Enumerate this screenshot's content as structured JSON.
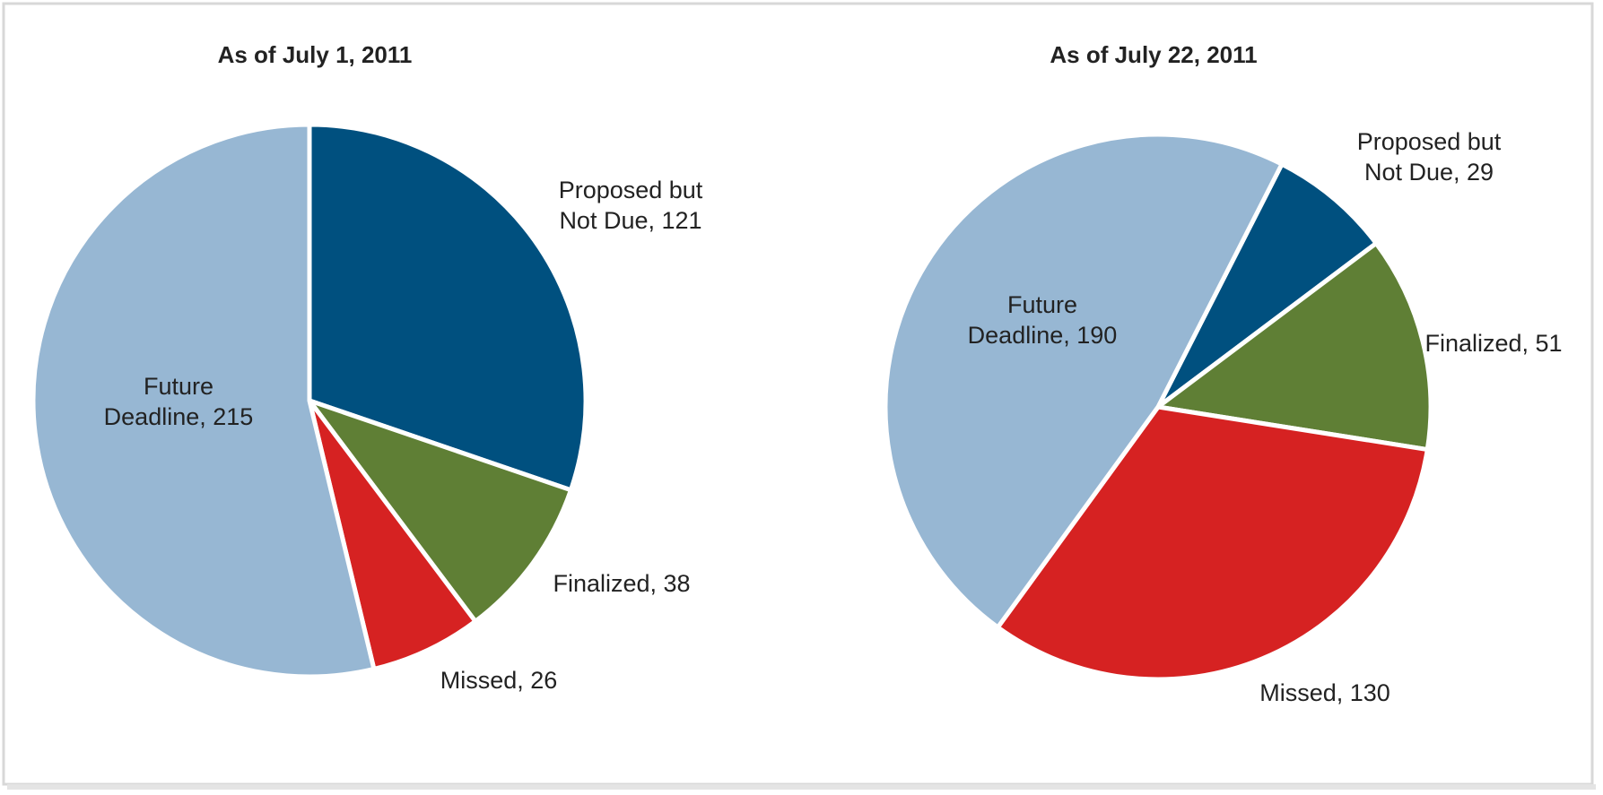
{
  "chart_data": [
    {
      "type": "pie",
      "title": "As of July 1, 2011",
      "start_angle": 0,
      "values": [
        121,
        38,
        26,
        215
      ],
      "value_labels": [
        [
          "Proposed but",
          "Not Due, 121"
        ],
        [
          "Finalized, 38"
        ],
        [
          "Missed, 26"
        ],
        [
          "Future",
          "Deadline, 215"
        ]
      ],
      "colors": [
        "#00507f",
        "#5f7f35",
        "#d62222",
        "#97b7d3"
      ]
    },
    {
      "type": "pie",
      "title": "As of July 22, 2011",
      "start_angle": 27,
      "values": [
        29,
        51,
        130,
        190
      ],
      "value_labels": [
        [
          "Proposed but",
          "Not Due, 29"
        ],
        [
          "Finalized, 51"
        ],
        [
          "Missed, 130"
        ],
        [
          "Future",
          "Deadline, 190"
        ]
      ],
      "colors": [
        "#00507f",
        "#5f7f35",
        "#d62222",
        "#97b7d3"
      ]
    }
  ]
}
